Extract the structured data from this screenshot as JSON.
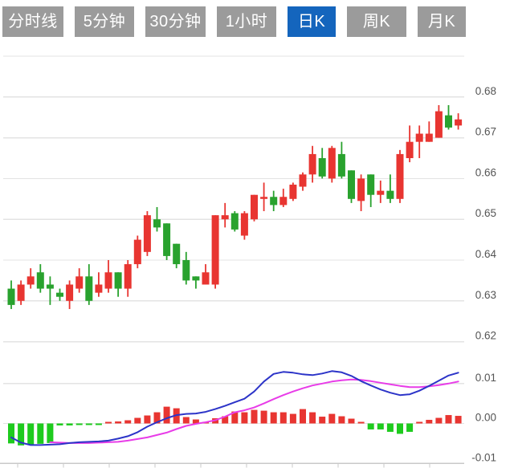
{
  "tabbar": {
    "items": [
      {
        "id": "minute-line",
        "label": "分时线",
        "active": false
      },
      {
        "id": "5min",
        "label": "5分钟",
        "active": false
      },
      {
        "id": "30min",
        "label": "30分钟",
        "active": false
      },
      {
        "id": "1hour",
        "label": "1小时",
        "active": false
      },
      {
        "id": "daily-k",
        "label": "日K",
        "active": true
      },
      {
        "id": "weekly-k",
        "label": "周K",
        "active": false
      },
      {
        "id": "monthly-k",
        "label": "月K",
        "active": false
      }
    ]
  },
  "colors": {
    "up": "#e83531",
    "down": "#29a22e",
    "macd_up": "#e83531",
    "macd_down": "#1ecb1e",
    "dif_line": "#2c34c8",
    "dea_line": "#e83ce8",
    "tab_bg": "#9b9b9b",
    "tab_active_bg": "#1465bd",
    "tab_text": "#ffffff",
    "grid_line": "#e3e3e3",
    "axis_line": "#c9c9c9",
    "axis_label": "#555555"
  },
  "chart_data": {
    "type": "candlestick",
    "title": "",
    "panes": [
      {
        "name": "price",
        "grid": true,
        "y_axis_labels": [
          "0.68",
          "0.67",
          "0.66",
          "0.65",
          "0.64",
          "0.63",
          "0.62"
        ],
        "y_grid_values": [
          0.69,
          0.68,
          0.67,
          0.66,
          0.65,
          0.64,
          0.63,
          0.62
        ],
        "ylim": [
          0.617,
          0.69
        ],
        "candles": [
          {
            "o": 0.633,
            "c": 0.629,
            "h": 0.635,
            "l": 0.628
          },
          {
            "o": 0.63,
            "c": 0.634,
            "h": 0.635,
            "l": 0.629
          },
          {
            "o": 0.634,
            "c": 0.636,
            "h": 0.638,
            "l": 0.633
          },
          {
            "o": 0.637,
            "c": 0.633,
            "h": 0.639,
            "l": 0.632
          },
          {
            "o": 0.634,
            "c": 0.633,
            "h": 0.636,
            "l": 0.629
          },
          {
            "o": 0.632,
            "c": 0.631,
            "h": 0.633,
            "l": 0.63
          },
          {
            "o": 0.63,
            "c": 0.634,
            "h": 0.635,
            "l": 0.628
          },
          {
            "o": 0.633,
            "c": 0.636,
            "h": 0.638,
            "l": 0.632
          },
          {
            "o": 0.636,
            "c": 0.63,
            "h": 0.639,
            "l": 0.629
          },
          {
            "o": 0.632,
            "c": 0.634,
            "h": 0.637,
            "l": 0.631
          },
          {
            "o": 0.633,
            "c": 0.637,
            "h": 0.64,
            "l": 0.632
          },
          {
            "o": 0.637,
            "c": 0.633,
            "h": 0.637,
            "l": 0.631
          },
          {
            "o": 0.633,
            "c": 0.639,
            "h": 0.64,
            "l": 0.631
          },
          {
            "o": 0.639,
            "c": 0.645,
            "h": 0.646,
            "l": 0.638
          },
          {
            "o": 0.642,
            "c": 0.651,
            "h": 0.652,
            "l": 0.641
          },
          {
            "o": 0.65,
            "c": 0.648,
            "h": 0.653,
            "l": 0.647
          },
          {
            "o": 0.649,
            "c": 0.641,
            "h": 0.649,
            "l": 0.64
          },
          {
            "o": 0.644,
            "c": 0.639,
            "h": 0.644,
            "l": 0.638
          },
          {
            "o": 0.64,
            "c": 0.635,
            "h": 0.642,
            "l": 0.634
          },
          {
            "o": 0.636,
            "c": 0.635,
            "h": 0.636,
            "l": 0.633
          },
          {
            "o": 0.634,
            "c": 0.637,
            "h": 0.639,
            "l": 0.634
          },
          {
            "o": 0.634,
            "c": 0.651,
            "h": 0.651,
            "l": 0.633
          },
          {
            "o": 0.65,
            "c": 0.651,
            "h": 0.654,
            "l": 0.648
          },
          {
            "o": 0.6515,
            "c": 0.6475,
            "h": 0.652,
            "l": 0.647
          },
          {
            "o": 0.646,
            "c": 0.6515,
            "h": 0.652,
            "l": 0.645
          },
          {
            "o": 0.65,
            "c": 0.656,
            "h": 0.656,
            "l": 0.6495
          },
          {
            "o": 0.655,
            "c": 0.6555,
            "h": 0.659,
            "l": 0.652
          },
          {
            "o": 0.6555,
            "c": 0.6535,
            "h": 0.657,
            "l": 0.652
          },
          {
            "o": 0.6535,
            "c": 0.6555,
            "h": 0.6575,
            "l": 0.653
          },
          {
            "o": 0.655,
            "c": 0.6585,
            "h": 0.659,
            "l": 0.6545
          },
          {
            "o": 0.658,
            "c": 0.661,
            "h": 0.6615,
            "l": 0.657
          },
          {
            "o": 0.661,
            "c": 0.666,
            "h": 0.668,
            "l": 0.659
          },
          {
            "o": 0.665,
            "c": 0.6605,
            "h": 0.6675,
            "l": 0.66
          },
          {
            "o": 0.66,
            "c": 0.6675,
            "h": 0.668,
            "l": 0.659
          },
          {
            "o": 0.666,
            "c": 0.6605,
            "h": 0.669,
            "l": 0.66
          },
          {
            "o": 0.662,
            "c": 0.655,
            "h": 0.662,
            "l": 0.654
          },
          {
            "o": 0.6545,
            "c": 0.66,
            "h": 0.661,
            "l": 0.652
          },
          {
            "o": 0.661,
            "c": 0.656,
            "h": 0.661,
            "l": 0.653
          },
          {
            "o": 0.656,
            "c": 0.657,
            "h": 0.6595,
            "l": 0.654
          },
          {
            "o": 0.657,
            "c": 0.655,
            "h": 0.661,
            "l": 0.654
          },
          {
            "o": 0.655,
            "c": 0.666,
            "h": 0.667,
            "l": 0.654
          },
          {
            "o": 0.665,
            "c": 0.669,
            "h": 0.673,
            "l": 0.664
          },
          {
            "o": 0.669,
            "c": 0.671,
            "h": 0.673,
            "l": 0.665
          },
          {
            "o": 0.669,
            "c": 0.671,
            "h": 0.674,
            "l": 0.669
          },
          {
            "o": 0.67,
            "c": 0.6765,
            "h": 0.678,
            "l": 0.67
          },
          {
            "o": 0.6755,
            "c": 0.6725,
            "h": 0.678,
            "l": 0.672
          },
          {
            "o": 0.673,
            "c": 0.6745,
            "h": 0.676,
            "l": 0.672
          }
        ]
      },
      {
        "name": "macd",
        "grid": true,
        "y_axis_labels": [
          "0.01",
          "0.00",
          "-0.01"
        ],
        "y_grid_values": [
          0.01,
          0.0,
          -0.01
        ],
        "ylim": [
          -0.011,
          0.0125
        ],
        "histogram": [
          -0.005,
          -0.0055,
          -0.0054,
          -0.0051,
          -0.0049,
          -0.0005,
          -0.0005,
          -0.0004,
          -0.0001,
          -0.0004,
          0.0004,
          0.0005,
          0.0008,
          0.0014,
          0.002,
          0.0028,
          0.0042,
          0.0038,
          0.0016,
          0.001,
          0.0004,
          0.0013,
          0.0018,
          0.003,
          0.0028,
          0.0034,
          0.0032,
          0.0028,
          0.0028,
          0.0024,
          0.0036,
          0.0028,
          0.0017,
          0.0024,
          0.0018,
          0.0012,
          0.0002,
          -0.0015,
          -0.0015,
          -0.0021,
          -0.0026,
          -0.0021,
          0.0002,
          0.0009,
          0.0014,
          0.0021,
          0.0019
        ],
        "series": [
          {
            "name": "DIF",
            "color_key": "dif_line",
            "values": [
              -0.0035,
              -0.0048,
              -0.0054,
              -0.0054,
              -0.0053,
              -0.0052,
              -0.0049,
              -0.0047,
              -0.0046,
              -0.0045,
              -0.0043,
              -0.0038,
              -0.0032,
              -0.0022,
              -0.0008,
              0.0003,
              0.0013,
              0.0021,
              0.0024,
              0.0025,
              0.0029,
              0.0036,
              0.0044,
              0.0053,
              0.0062,
              0.008,
              0.0105,
              0.0124,
              0.0129,
              0.0127,
              0.0123,
              0.0121,
              0.0125,
              0.0131,
              0.0128,
              0.0119,
              0.0106,
              0.0095,
              0.0085,
              0.0077,
              0.0071,
              0.0073,
              0.0082,
              0.0094,
              0.0107,
              0.012,
              0.0127
            ]
          },
          {
            "name": "DEA",
            "color_key": "dea_line",
            "values": [
              null,
              null,
              null,
              null,
              -0.0047,
              -0.0048,
              -0.0049,
              -0.0049,
              -0.0049,
              -0.0048,
              -0.0047,
              -0.0046,
              -0.0043,
              -0.0039,
              -0.0035,
              -0.0029,
              -0.0023,
              -0.0014,
              -0.0006,
              -0.0001,
              0.0003,
              0.0008,
              0.0017,
              0.0028,
              0.0033,
              0.004,
              0.005,
              0.0061,
              0.0071,
              0.008,
              0.0088,
              0.0095,
              0.01,
              0.0105,
              0.0108,
              0.011,
              0.0109,
              0.0106,
              0.0102,
              0.0098,
              0.0094,
              0.0091,
              0.0091,
              0.0093,
              0.0096,
              0.01,
              0.0105
            ]
          }
        ],
        "x_axis": {
          "tick_count": 10,
          "labels": []
        }
      }
    ]
  }
}
